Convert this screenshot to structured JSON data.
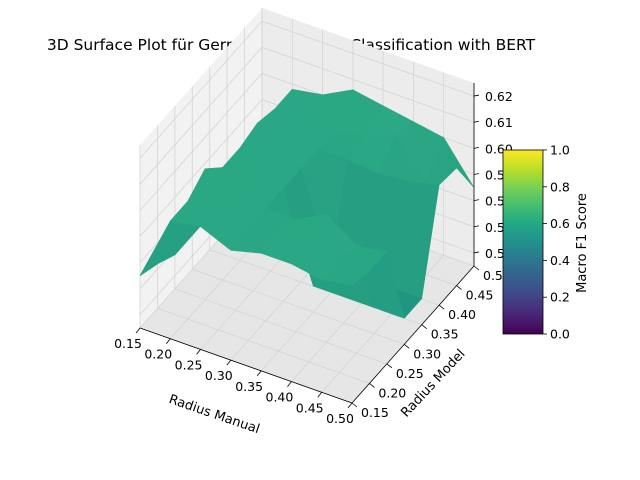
{
  "chart_data": {
    "type": "surface3d",
    "title": "3D Surface Plot für German Sentiment Classification with BERT",
    "xlabel": "Radius Manual",
    "ylabel": "Radius Model",
    "colorbar_label": "Macro F1 Score",
    "colormap": "viridis",
    "grid": true,
    "x_ticks": [
      "0.15",
      "0.20",
      "0.25",
      "0.30",
      "0.35",
      "0.40",
      "0.45",
      "0.50"
    ],
    "y_ticks": [
      "0.15",
      "0.20",
      "0.25",
      "0.30",
      "0.35",
      "0.40",
      "0.45",
      "0.50"
    ],
    "z_ticks": [
      "0.56",
      "0.57",
      "0.58",
      "0.59",
      "0.60",
      "0.61",
      "0.62"
    ],
    "colorbar_ticks": [
      "0.0",
      "0.2",
      "0.4",
      "0.6",
      "0.8",
      "1.0"
    ],
    "x_values": [
      0.15,
      0.2,
      0.25,
      0.3,
      0.35,
      0.4,
      0.45,
      0.5
    ],
    "y_values": [
      0.15,
      0.2,
      0.25,
      0.3,
      0.35,
      0.4,
      0.45,
      0.5
    ],
    "xlim": [
      0.15,
      0.5
    ],
    "ylim": [
      0.15,
      0.5
    ],
    "zlim": [
      0.555,
      0.625
    ],
    "clim": [
      0,
      1
    ],
    "z_grid": [
      [
        0.575,
        0.572,
        0.568,
        0.568,
        0.568,
        0.568,
        0.568,
        0.568
      ],
      [
        0.6,
        0.6,
        0.605,
        0.598,
        0.598,
        0.6,
        0.598,
        0.598
      ],
      [
        0.602,
        0.603,
        0.601,
        0.602,
        0.603,
        0.6,
        0.603,
        0.6
      ],
      [
        0.597,
        0.598,
        0.598,
        0.598,
        0.598,
        0.598,
        0.598,
        0.606
      ],
      [
        0.6,
        0.601,
        0.598,
        0.565,
        0.565,
        0.598,
        0.6,
        0.604
      ],
      [
        0.6,
        0.603,
        0.604,
        0.565,
        0.565,
        0.597,
        0.604,
        0.602
      ],
      [
        0.598,
        0.598,
        0.596,
        0.565,
        0.565,
        0.598,
        0.59,
        0.6
      ],
      [
        0.6,
        0.598,
        0.598,
        0.565,
        0.565,
        0.601,
        0.6,
        0.585
      ]
    ]
  }
}
